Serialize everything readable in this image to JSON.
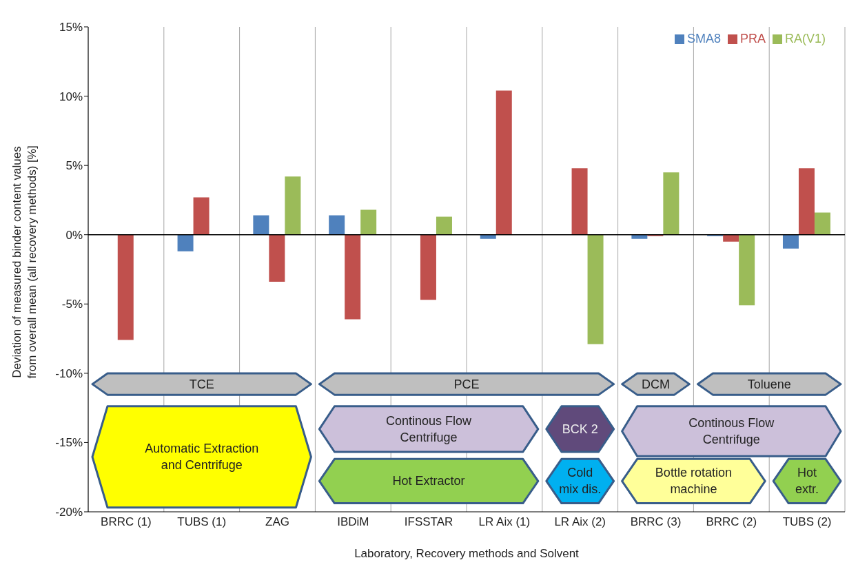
{
  "chart_data": {
    "type": "bar",
    "xlabel": "Laboratory,  Recovery methods and Solvent",
    "ylabel": "Deviation of measured binder content values\nfrom overall mean (all recovery methods) [%]",
    "categories": [
      "BRRC (1)",
      "TUBS (1)",
      "ZAG",
      "IBDiM",
      "IFSSTAR",
      "LR Aix (1)",
      "LR Aix (2)",
      "BRRC (3)",
      "BRRC (2)",
      "TUBS (2)"
    ],
    "series": [
      {
        "name": "SMA8",
        "color": "#4f81bd",
        "values": [
          null,
          -1.2,
          1.4,
          1.4,
          null,
          -0.3,
          null,
          -0.3,
          -0.1,
          -1.0
        ]
      },
      {
        "name": "PRA",
        "color": "#c0504d",
        "values": [
          -7.6,
          2.7,
          -3.4,
          -6.1,
          -4.7,
          10.4,
          4.8,
          -0.1,
          -0.5,
          4.8
        ]
      },
      {
        "name": "RA(V1)",
        "color": "#9bbb59",
        "values": [
          null,
          null,
          4.2,
          1.8,
          1.3,
          null,
          -7.9,
          4.5,
          -5.1,
          1.6
        ]
      }
    ],
    "ylim": [
      -20,
      15
    ],
    "yticks": [
      {
        "value": -20,
        "label": "-20%"
      },
      {
        "value": -15,
        "label": "-15%"
      },
      {
        "value": -10,
        "label": "-10%"
      },
      {
        "value": -5,
        "label": "-5%"
      },
      {
        "value": 0,
        "label": "0%"
      },
      {
        "value": 5,
        "label": "5%"
      },
      {
        "value": 10,
        "label": "10%"
      },
      {
        "value": 15,
        "label": "15%"
      }
    ],
    "grid": "x",
    "legend": "top right",
    "ref_lines": [
      {
        "axis": "y",
        "value": 0,
        "color": "#000000"
      }
    ],
    "annotations": [
      "TCE",
      "PCE",
      "DCM",
      "Toluene",
      "Automatic Extraction\nand Centrifuge",
      "Continous Flow\nCentrifuge",
      "BCK 2",
      "Continous Flow\nCentrifuge",
      "Hot Extractor",
      "Cold\nmix dis.",
      "Bottle rotation\nmachine",
      "Hot\nextr."
    ]
  }
}
